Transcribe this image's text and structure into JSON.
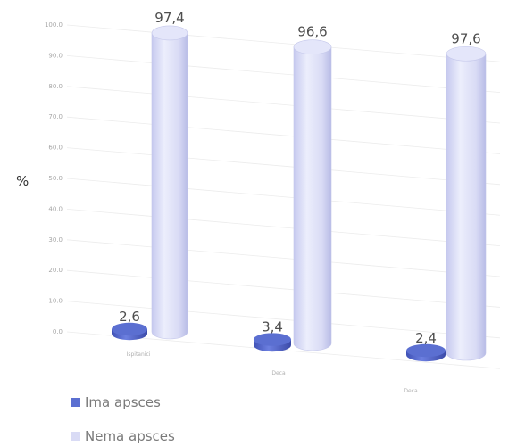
{
  "chart_data": {
    "type": "bar",
    "style": "3d-cylinder",
    "categories": [
      "Ispitanici",
      "Deca",
      "Deca"
    ],
    "series": [
      {
        "name": "Ima apsces",
        "values": [
          2.6,
          3.4,
          2.4
        ],
        "color": "#5b6fd1"
      },
      {
        "name": "Nema apsces",
        "values": [
          97.4,
          96.6,
          97.6
        ],
        "color": "#d9dbf5"
      }
    ],
    "value_labels": {
      "Ima apsces": [
        "2,6",
        "3,4",
        "2,4"
      ],
      "Nema apsces": [
        "97,4",
        "96,6",
        "97,6"
      ]
    },
    "ylabel": "%",
    "yticks": [
      "100.0",
      "90.0",
      "80.0",
      "70.0",
      "60.0",
      "50.0",
      "40.0",
      "30.0",
      "20.0",
      "10.0",
      "0.0"
    ],
    "ylim": [
      0,
      100
    ],
    "grid": true,
    "legend": "bottom-left"
  }
}
